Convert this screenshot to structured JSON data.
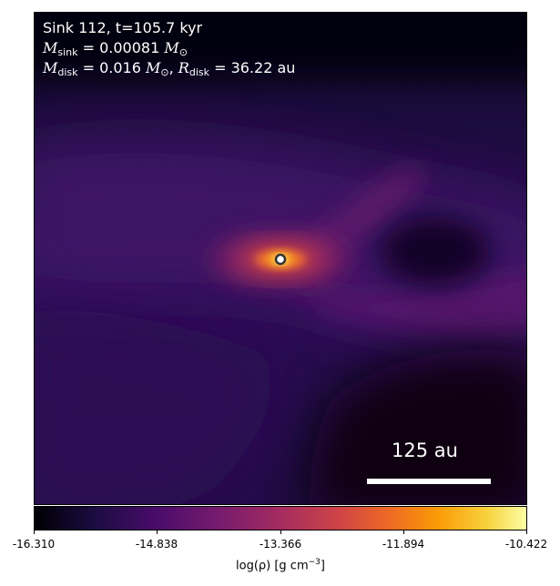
{
  "annotation": {
    "line1": "Sink 112, t=105.7 kyr",
    "sink_mass_value": "0.00081",
    "disk_mass_value": "0.016",
    "disk_radius_value": "36.22 au"
  },
  "scale_bar": {
    "label": "125 au"
  },
  "colorbar": {
    "colormap": "inferno",
    "ticks": [
      "-16.310",
      "-14.838",
      "-13.366",
      "-11.894",
      "-10.422"
    ],
    "label_prefix": "log(ρ) [g cm",
    "label_exp": "−3",
    "label_suffix": "]"
  },
  "colors": {
    "background": "#170a2e",
    "filament": "#6a1a6d",
    "core": "#fcffa4",
    "sink_marker_fill": "#ffffff",
    "sink_marker_stroke": "#333333"
  }
}
